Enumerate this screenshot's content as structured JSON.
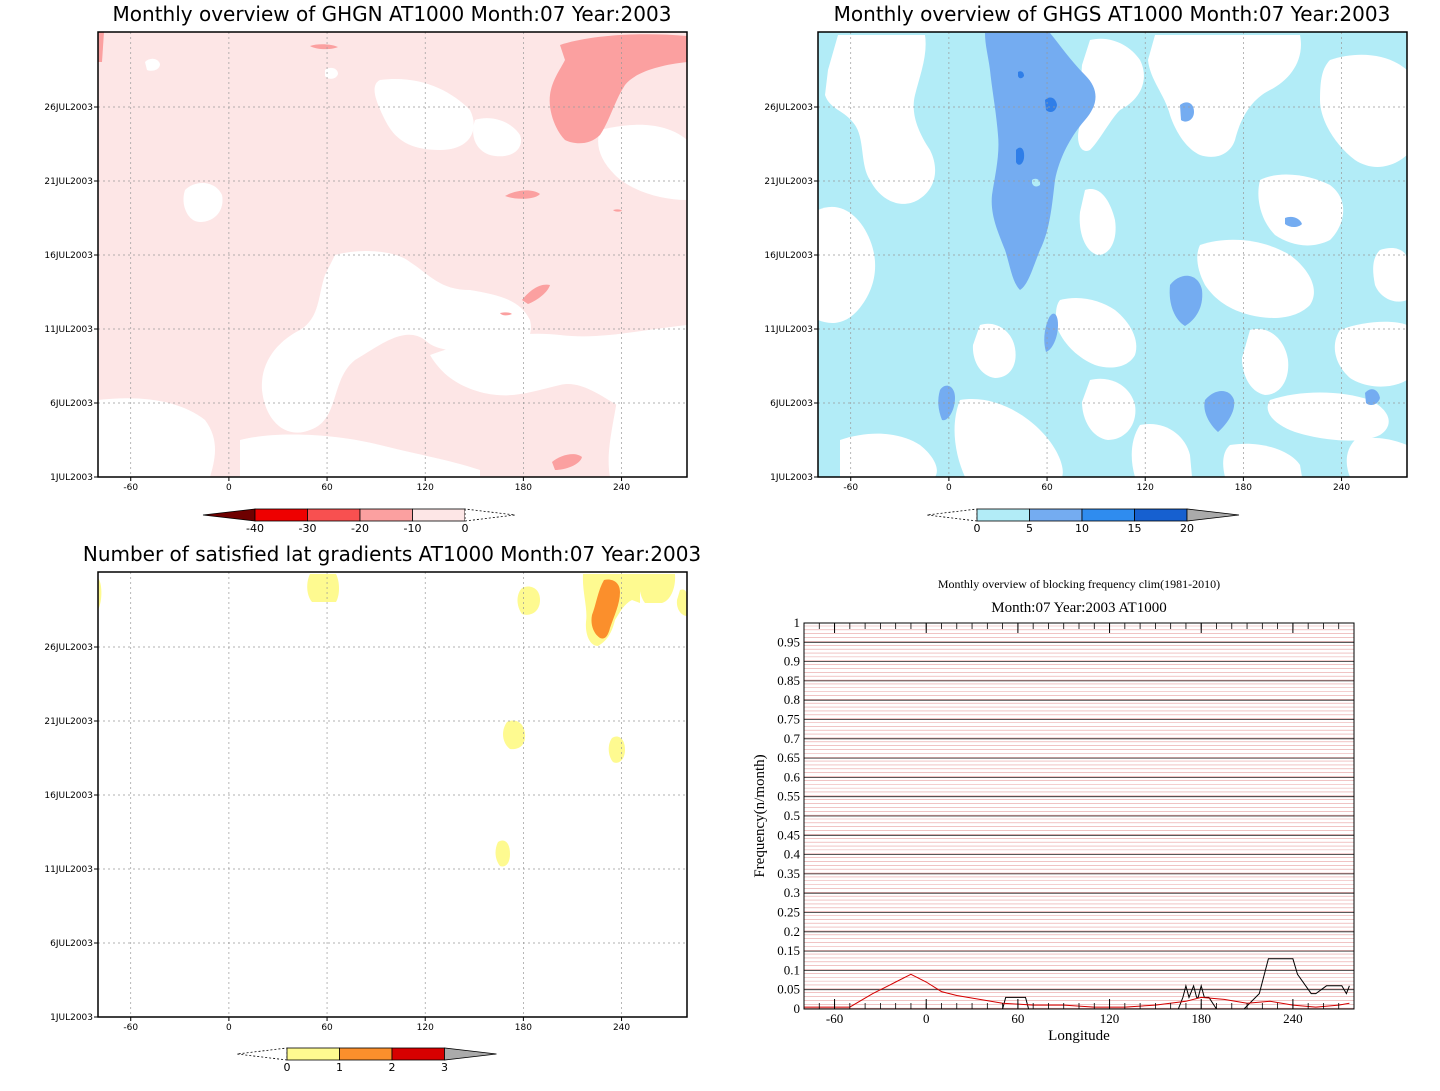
{
  "colors": {
    "pink_light": "#fde6e6",
    "pink_mid": "#fba0a0",
    "pink_dark": "#f47e7e",
    "blue_light": "#b2ecf7",
    "blue_mid": "#74acf1",
    "blue_dark": "#2f7ee8",
    "yellow": "#fefa90",
    "orange": "#fb8f2c",
    "red": "#d70000",
    "grid": "#999999",
    "line_black": "#000000",
    "line_red": "#d40000"
  },
  "chart_data": [
    {
      "type": "heatmap",
      "title": "Monthly overview of GHGN AT1000 Month:07 Year:2003",
      "x_ticks": [
        "-60",
        "0",
        "60",
        "120",
        "180",
        "240"
      ],
      "y_ticks": [
        "1JUL2003",
        "6JUL2003",
        "11JUL2003",
        "16JUL2003",
        "21JUL2003",
        "26JUL2003"
      ],
      "xlim": [
        -80,
        280
      ],
      "colorbar": {
        "labels": [
          "-40",
          "-30",
          "-20",
          "-10",
          "0"
        ],
        "colors": [
          "#6e0000",
          "#ee0000",
          "#f85050",
          "#fba0a0",
          "#fde6e6"
        ],
        "extend": "both"
      }
    },
    {
      "type": "heatmap",
      "title": "Monthly overview of GHGS AT1000 Month:07 Year:2003",
      "x_ticks": [
        "-60",
        "0",
        "60",
        "120",
        "180",
        "240"
      ],
      "y_ticks": [
        "1JUL2003",
        "6JUL2003",
        "11JUL2003",
        "16JUL2003",
        "21JUL2003",
        "26JUL2003"
      ],
      "xlim": [
        -80,
        280
      ],
      "colorbar": {
        "labels": [
          "0",
          "5",
          "10",
          "15",
          "20"
        ],
        "colors": [
          "#b2ecf7",
          "#74acf1",
          "#2f8cef",
          "#1660d0"
        ],
        "extend": "both"
      }
    },
    {
      "type": "heatmap",
      "title": "Number of satisfied lat gradients AT1000 Month:07 Year:2003",
      "x_ticks": [
        "-60",
        "0",
        "60",
        "120",
        "180",
        "240"
      ],
      "y_ticks": [
        "1JUL2003",
        "6JUL2003",
        "11JUL2003",
        "16JUL2003",
        "21JUL2003",
        "26JUL2003"
      ],
      "xlim": [
        -80,
        280
      ],
      "colorbar": {
        "labels": [
          "0",
          "1",
          "2",
          "3"
        ],
        "colors": [
          "#fefa90",
          "#fb8f2c",
          "#d70000"
        ],
        "extend": "both"
      }
    },
    {
      "type": "line",
      "title": "Monthly overview of blocking frequency clim(1981-2010)",
      "subtitle": "Month:07 Year:2003  AT1000",
      "xlabel": "Longitude",
      "ylabel": "Frequency(n/month)",
      "xlim": [
        -80,
        280
      ],
      "ylim": [
        0,
        1
      ],
      "x_ticks": [
        "-60",
        "0",
        "60",
        "120",
        "180",
        "240"
      ],
      "y_ticks": [
        "0",
        "0.05",
        "0.1",
        "0.15",
        "0.2",
        "0.25",
        "0.3",
        "0.35",
        "0.4",
        "0.45",
        "0.5",
        "0.55",
        "0.6",
        "0.65",
        "0.7",
        "0.75",
        "0.8",
        "0.85",
        "0.9",
        "0.95",
        "1"
      ],
      "series": [
        {
          "color": "#000000",
          "x": [
            -80,
            50,
            52,
            65,
            67,
            165,
            168,
            170,
            172,
            175,
            177,
            178,
            180,
            182,
            185,
            190,
            208,
            218,
            224,
            240,
            243,
            252,
            255,
            262,
            272,
            275,
            277
          ],
          "y": [
            0,
            0,
            0.03,
            0.03,
            0,
            0,
            0.03,
            0.06,
            0.03,
            0.06,
            0.03,
            0.03,
            0.06,
            0.03,
            0.03,
            0,
            0,
            0.04,
            0.13,
            0.13,
            0.09,
            0.04,
            0.04,
            0.06,
            0.06,
            0.04,
            0.06
          ]
        },
        {
          "color": "#d40000",
          "x": [
            -80,
            -70,
            -50,
            -35,
            -20,
            -10,
            0,
            10,
            20,
            35,
            50,
            70,
            90,
            110,
            130,
            150,
            170,
            180,
            195,
            210,
            225,
            240,
            255,
            270,
            277
          ],
          "y": [
            0.005,
            0.005,
            0.005,
            0.04,
            0.07,
            0.09,
            0.07,
            0.045,
            0.035,
            0.025,
            0.015,
            0.01,
            0.01,
            0.005,
            0.005,
            0.01,
            0.02,
            0.03,
            0.025,
            0.015,
            0.02,
            0.01,
            0.005,
            0.01,
            0.015
          ]
        }
      ]
    }
  ]
}
